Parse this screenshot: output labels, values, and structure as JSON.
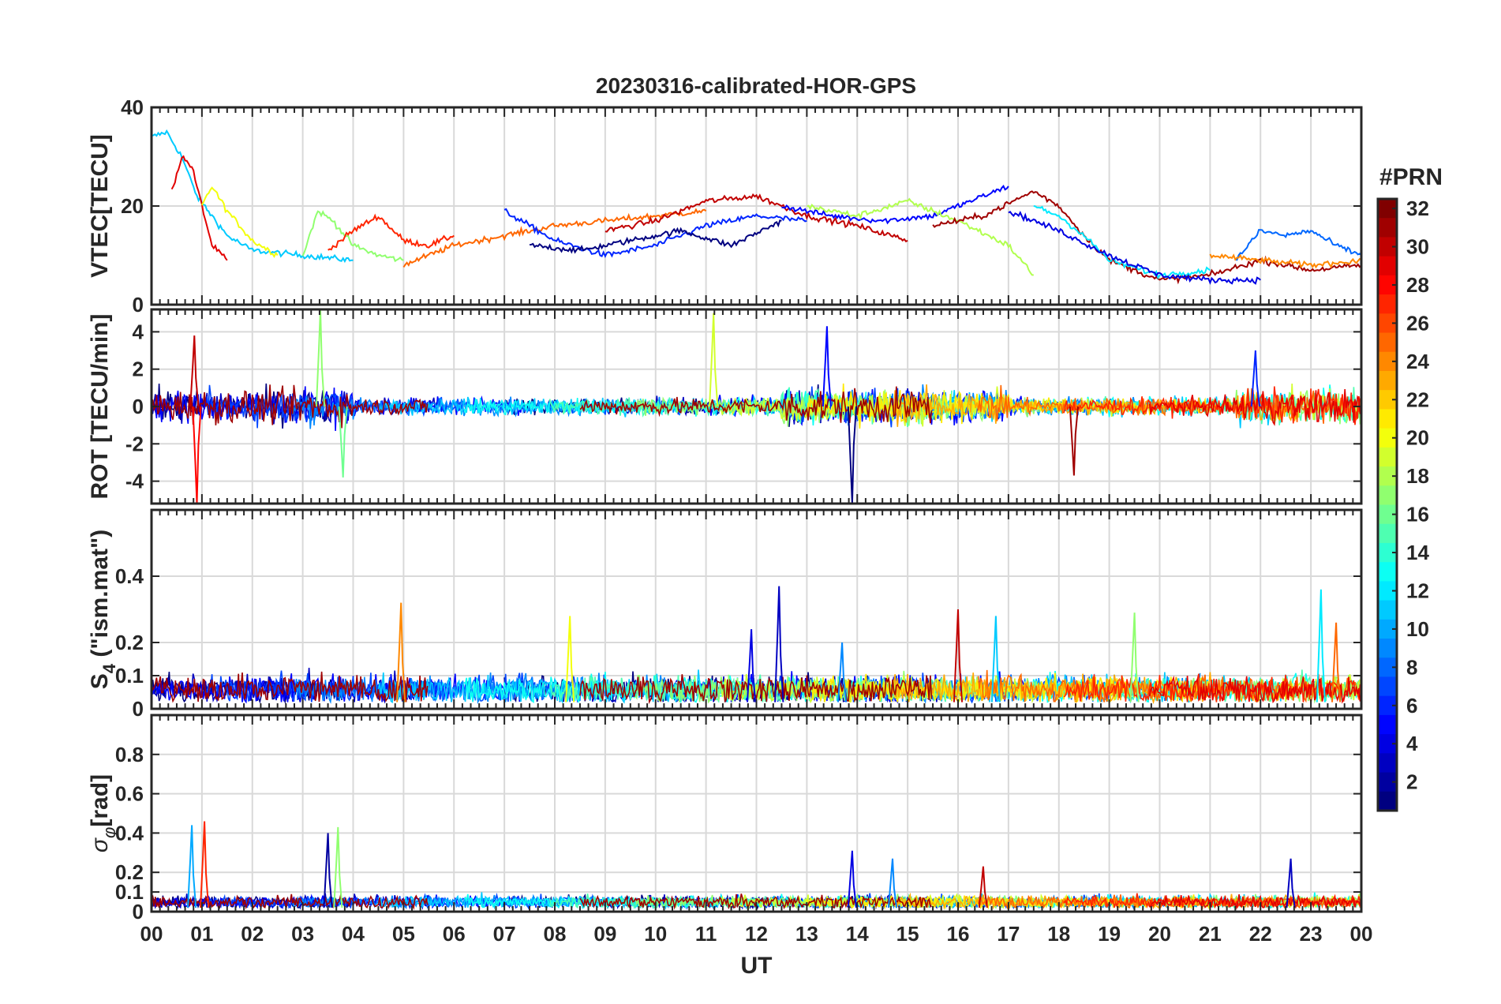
{
  "chart_data": {
    "title": "20230316-calibrated-HOR-GPS",
    "type": "line",
    "xlabel": "UT",
    "x_ticks": [
      "00",
      "01",
      "02",
      "03",
      "04",
      "05",
      "06",
      "07",
      "08",
      "09",
      "10",
      "11",
      "12",
      "13",
      "14",
      "15",
      "16",
      "17",
      "18",
      "19",
      "20",
      "21",
      "22",
      "23",
      "00"
    ],
    "xlim": [
      0,
      24
    ],
    "colorbar": {
      "label": "#PRN",
      "ticks": [
        "2",
        "4",
        "6",
        "8",
        "10",
        "12",
        "14",
        "16",
        "18",
        "20",
        "22",
        "24",
        "26",
        "28",
        "30",
        "32"
      ],
      "range": [
        1,
        32
      ],
      "colormap": "jet"
    },
    "panels": [
      {
        "id": "vtec",
        "ylabel": "VTEC[TECU]",
        "ylim": [
          0,
          40
        ],
        "yticks": [
          "0",
          "20",
          "40"
        ],
        "ytick_values": [
          0,
          20,
          40
        ],
        "typical_range": [
          5,
          35
        ],
        "series": [
          {
            "prn": 11,
            "x": [
              0.0,
              0.3,
              0.6,
              0.9,
              1.2,
              1.5,
              2.0,
              3.0,
              4.0
            ],
            "y": [
              34,
              35,
              30,
              22,
              18,
              14,
              11,
              10,
              9
            ]
          },
          {
            "prn": 29,
            "x": [
              0.4,
              0.6,
              0.8,
              1.0,
              1.2,
              1.5
            ],
            "y": [
              23,
              30,
              28,
              20,
              12,
              9
            ]
          },
          {
            "prn": 20,
            "x": [
              1.0,
              1.2,
              1.5,
              2.0,
              2.5
            ],
            "y": [
              20,
              24,
              19,
              13,
              10
            ]
          },
          {
            "prn": 17,
            "x": [
              3.0,
              3.3,
              3.6,
              4.0,
              4.5,
              5.0
            ],
            "y": [
              10,
              19,
              17,
              12,
              10,
              9
            ]
          },
          {
            "prn": 27,
            "x": [
              3.5,
              4.0,
              4.5,
              5.0,
              5.5,
              6.0
            ],
            "y": [
              11,
              15,
              18,
              13,
              12,
              14
            ]
          },
          {
            "prn": 25,
            "x": [
              5.0,
              6.0,
              7.0,
              8.0,
              9.0,
              10.0,
              11.0
            ],
            "y": [
              8,
              12,
              14,
              16,
              17,
              18,
              19
            ]
          },
          {
            "prn": 6,
            "x": [
              7.0,
              8.0,
              9.0,
              10.0,
              11.0,
              12.0,
              13.0
            ],
            "y": [
              19,
              13,
              10,
              12,
              16,
              18,
              17
            ]
          },
          {
            "prn": 1,
            "x": [
              7.5,
              8.5,
              9.5,
              10.5,
              11.5,
              12.5
            ],
            "y": [
              12,
              11,
              13,
              15,
              12,
              17
            ]
          },
          {
            "prn": 30,
            "x": [
              9.0,
              10.0,
              11.0,
              12.0,
              13.0,
              14.0,
              15.0
            ],
            "y": [
              15,
              17,
              21,
              22,
              18,
              16,
              13
            ]
          },
          {
            "prn": 5,
            "x": [
              12.5,
              13.5,
              14.5,
              15.5,
              16.5,
              17.0
            ],
            "y": [
              20,
              18,
              17,
              18,
              22,
              24
            ]
          },
          {
            "prn": 18,
            "x": [
              13.0,
              14.0,
              15.0,
              16.0,
              17.0,
              17.5
            ],
            "y": [
              20,
              18,
              21,
              17,
              12,
              6
            ]
          },
          {
            "prn": 31,
            "x": [
              15.5,
              16.5,
              17.5,
              18.0,
              18.5,
              19.0,
              20.0,
              21.0,
              22.0,
              23.0,
              24.0
            ],
            "y": [
              16,
              18,
              23,
              20,
              14,
              9,
              5,
              6,
              9,
              7,
              8
            ]
          },
          {
            "prn": 12,
            "x": [
              17.5,
              18.0,
              18.5,
              19.0,
              20.0,
              21.0
            ],
            "y": [
              20,
              18,
              14,
              9,
              6,
              7
            ]
          },
          {
            "prn": 4,
            "x": [
              17.0,
              18.0,
              19.0,
              20.0,
              21.0,
              22.0
            ],
            "y": [
              19,
              15,
              10,
              6,
              5,
              5
            ]
          },
          {
            "prn": 8,
            "x": [
              21.5,
              22.0,
              22.5,
              23.0,
              23.5,
              24.0
            ],
            "y": [
              9,
              15,
              14,
              15,
              12,
              10
            ]
          },
          {
            "prn": 24,
            "x": [
              21.0,
              22.0,
              23.0,
              24.0
            ],
            "y": [
              10,
              9,
              8,
              9
            ]
          }
        ]
      },
      {
        "id": "rot",
        "ylabel": "ROT [TECU/min]",
        "ylim": [
          -5.2,
          5.2
        ],
        "yticks": [
          "-4",
          "-2",
          "0",
          "2",
          "4"
        ],
        "ytick_values": [
          -4,
          -2,
          0,
          2,
          4
        ],
        "typical_range": [
          -2,
          2
        ],
        "peaks": [
          {
            "prn": 28,
            "x": 0.9,
            "y": -5.2
          },
          {
            "prn": 30,
            "x": 0.85,
            "y": 3.8
          },
          {
            "prn": 17,
            "x": 3.35,
            "y": 5.2
          },
          {
            "prn": 16,
            "x": 3.8,
            "y": -3.8
          },
          {
            "prn": 19,
            "x": 11.15,
            "y": 5.0
          },
          {
            "prn": 1,
            "x": 13.9,
            "y": -5.2
          },
          {
            "prn": 5,
            "x": 13.4,
            "y": 4.3
          },
          {
            "prn": 31,
            "x": 18.3,
            "y": -3.7
          },
          {
            "prn": 6,
            "x": 21.9,
            "y": 3.0
          }
        ]
      },
      {
        "id": "s4",
        "ylabel": "S4 (\"ism.mat\")",
        "ylabel_main": "S",
        "ylabel_sub": "4",
        "ylabel_rest": " (\"ism.mat\")",
        "ylim": [
          0,
          0.6
        ],
        "yticks": [
          "0",
          "0.1",
          "0.2",
          "0.4"
        ],
        "ytick_values": [
          0,
          0.1,
          0.2,
          0.4
        ],
        "typical_range": [
          0.02,
          0.1
        ],
        "peaks": [
          {
            "prn": 24,
            "x": 4.95,
            "y": 0.32
          },
          {
            "prn": 20,
            "x": 8.3,
            "y": 0.28
          },
          {
            "prn": 3,
            "x": 12.45,
            "y": 0.37
          },
          {
            "prn": 4,
            "x": 11.9,
            "y": 0.24
          },
          {
            "prn": 9,
            "x": 13.7,
            "y": 0.2
          },
          {
            "prn": 30,
            "x": 16.0,
            "y": 0.3
          },
          {
            "prn": 11,
            "x": 16.75,
            "y": 0.28
          },
          {
            "prn": 17,
            "x": 19.5,
            "y": 0.29
          },
          {
            "prn": 12,
            "x": 23.2,
            "y": 0.36
          },
          {
            "prn": 25,
            "x": 23.5,
            "y": 0.26
          }
        ]
      },
      {
        "id": "sigma_phi",
        "ylabel": "σφ [rad]",
        "ylabel_main": "σ",
        "ylabel_sub": "φ",
        "ylabel_rest": "[rad]",
        "ylim": [
          0,
          1.0
        ],
        "yticks": [
          "0",
          "0.1",
          "0.2",
          "0.4",
          "0.6",
          "0.8"
        ],
        "ytick_values": [
          0,
          0.1,
          0.2,
          0.4,
          0.6,
          0.8
        ],
        "typical_range": [
          0.02,
          0.08
        ],
        "peaks": [
          {
            "prn": 10,
            "x": 0.8,
            "y": 0.44
          },
          {
            "prn": 27,
            "x": 1.05,
            "y": 0.46
          },
          {
            "prn": 2,
            "x": 3.5,
            "y": 0.4
          },
          {
            "prn": 17,
            "x": 3.7,
            "y": 0.43
          },
          {
            "prn": 4,
            "x": 13.9,
            "y": 0.31
          },
          {
            "prn": 9,
            "x": 14.7,
            "y": 0.27
          },
          {
            "prn": 30,
            "x": 16.5,
            "y": 0.23
          },
          {
            "prn": 3,
            "x": 22.6,
            "y": 0.27
          }
        ]
      }
    ]
  }
}
